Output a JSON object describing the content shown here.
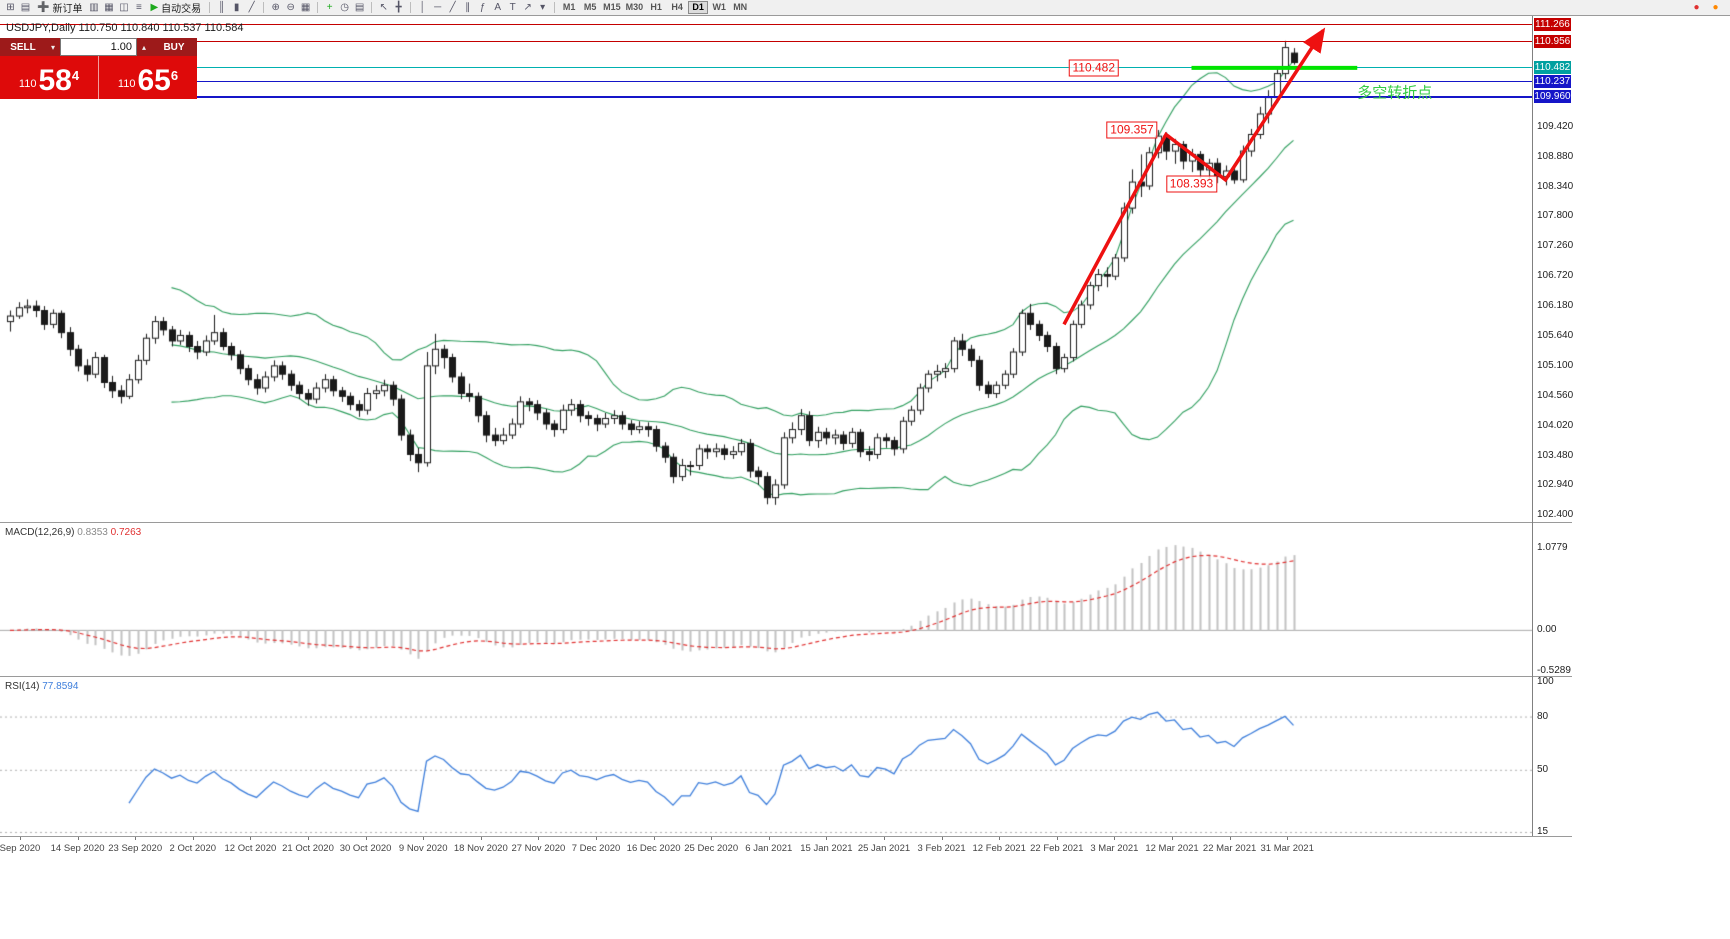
{
  "toolbar": {
    "new_order_label": "新订单",
    "autotrade_label": "自动交易",
    "active_timeframe": "D1",
    "timeframes": [
      "M1",
      "M5",
      "M15",
      "M30",
      "H1",
      "H4",
      "D1",
      "W1",
      "MN"
    ],
    "items": [
      {
        "name": "new-chart-icon",
        "glyph": "⊞"
      },
      {
        "name": "profiles-icon",
        "glyph": "▤"
      },
      {
        "name": "new-order-button",
        "glyph": "➕",
        "glyph_color": "#1daa1d",
        "label_key": "new_order_label",
        "button": true
      },
      {
        "name": "market-watch-icon",
        "glyph": "▥"
      },
      {
        "name": "data-window-icon",
        "glyph": "▦"
      },
      {
        "name": "navigator-icon",
        "glyph": "◫"
      },
      {
        "name": "terminal-icon",
        "glyph": "≡"
      },
      {
        "name": "autotrade-button",
        "glyph": "▶",
        "glyph_color": "#1daa1d",
        "label_key": "autotrade_label",
        "button": true
      },
      {
        "sep": true
      },
      {
        "name": "bar-chart-icon",
        "glyph": "║"
      },
      {
        "name": "candlestick-icon",
        "glyph": "▮"
      },
      {
        "name": "line-chart-icon",
        "glyph": "╱"
      },
      {
        "sep": true
      },
      {
        "name": "zoom-in-icon",
        "glyph": "⊕"
      },
      {
        "name": "zoom-out-icon",
        "glyph": "⊖"
      },
      {
        "name": "tile-windows-icon",
        "glyph": "▦"
      },
      {
        "sep": true
      },
      {
        "name": "indicators-icon",
        "glyph": "+",
        "glyph_color": "#1daa1d"
      },
      {
        "name": "periods-icon",
        "glyph": "◷"
      },
      {
        "name": "templates-icon",
        "glyph": "▤"
      },
      {
        "sep": true
      },
      {
        "name": "cursor-icon",
        "glyph": "↖"
      },
      {
        "name": "crosshair-icon",
        "glyph": "╋"
      },
      {
        "sep": true
      },
      {
        "name": "vertical-line-icon",
        "glyph": "│"
      },
      {
        "name": "horizontal-line-icon",
        "glyph": "─"
      },
      {
        "name": "trendline-icon",
        "glyph": "╱"
      },
      {
        "name": "channel-icon",
        "glyph": "∥"
      },
      {
        "name": "fibonacci-icon",
        "glyph": "ƒ"
      },
      {
        "name": "text-icon",
        "glyph": "A"
      },
      {
        "name": "text-label-icon",
        "glyph": "T"
      },
      {
        "name": "arrows-tool-icon",
        "glyph": "↗"
      },
      {
        "name": "dropdown-icon",
        "glyph": "▾"
      },
      {
        "sep": true
      }
    ],
    "right_icons": [
      {
        "name": "community-dot-icon",
        "glyph": "●",
        "glyph_color": "#e03131"
      },
      {
        "name": "corner-dot-icon",
        "glyph": "●",
        "glyph_color": "#ff8800"
      }
    ]
  },
  "trade_panel": {
    "sell_label": "SELL",
    "buy_label": "BUY",
    "volume": "1.00",
    "bid_small": "110",
    "bid_big": "58",
    "bid_sup": "4",
    "ask_small": "110",
    "ask_big": "65",
    "ask_sup": "6"
  },
  "chart_data": {
    "type": "candlestick",
    "symbol": "USDJPY",
    "timeframe": "Daily",
    "ohlc_title": "USDJPY,Daily  110.750 110.840 110.537 110.584",
    "ylim": [
      102.28,
      111.42
    ],
    "y_axis_labels": [
      "109.420",
      "108.880",
      "108.340",
      "107.800",
      "107.260",
      "106.720",
      "106.180",
      "105.640",
      "105.100",
      "104.560",
      "104.020",
      "103.480",
      "102.940",
      "102.400"
    ],
    "axis_chips": [
      {
        "text": "111.266",
        "price": 111.266,
        "bg": "#c40000"
      },
      {
        "text": "110.956",
        "price": 110.956,
        "bg": "#c40000"
      },
      {
        "text": "110.482",
        "price": 110.482,
        "bg": "#00a0a0"
      },
      {
        "text": "110.237",
        "price": 110.237,
        "bg": "#1515c8"
      },
      {
        "text": "109.960",
        "price": 109.96,
        "bg": "#1515c8"
      }
    ],
    "hlines": [
      {
        "price": 111.266,
        "color": "#c40000",
        "w": 1
      },
      {
        "price": 110.956,
        "color": "#c40000",
        "w": 1
      },
      {
        "price": 110.482,
        "color": "#00b0b0",
        "w": 1
      },
      {
        "price": 110.237,
        "color": "#1515c8",
        "w": 1
      },
      {
        "price": 109.96,
        "color": "#1515c8",
        "w": 2
      }
    ],
    "segment": {
      "price": 110.482,
      "from": 139,
      "to": 158.5,
      "color": "#00e400",
      "w": 4
    },
    "annotations": {
      "price_labels": [
        {
          "text": "110.482",
          "index": 127.5,
          "price": 110.482
        },
        {
          "text": "109.357",
          "index": 132,
          "price": 109.357
        },
        {
          "text": "108.393",
          "index": 139,
          "price": 108.393
        }
      ],
      "note": {
        "text": "多空转折点",
        "index": 158.5,
        "price": 110.05
      },
      "arrows": [
        {
          "points": [
            [
              124,
              105.85
            ],
            [
              136,
              109.28
            ],
            [
              143,
              108.46
            ],
            [
              154.5,
              111.16
            ]
          ]
        }
      ],
      "arrow_color": "#ee1111"
    },
    "x_labels": [
      "Sep 2020",
      "14 Sep 2020",
      "23 Sep 2020",
      "2 Oct 2020",
      "12 Oct 2020",
      "21 Oct 2020",
      "30 Oct 2020",
      "9 Nov 2020",
      "18 Nov 2020",
      "27 Nov 2020",
      "7 Dec 2020",
      "16 Dec 2020",
      "25 Dec 2020",
      "6 Jan 2021",
      "15 Jan 2021",
      "25 Jan 2021",
      "3 Feb 2021",
      "12 Feb 2021",
      "22 Feb 2021",
      "3 Mar 2021",
      "12 Mar 2021",
      "22 Mar 2021",
      "31 Mar 2021"
    ],
    "candles": [
      [
        105.9,
        106.1,
        105.72,
        106.0
      ],
      [
        106.0,
        106.25,
        105.95,
        106.15
      ],
      [
        106.15,
        106.3,
        106.05,
        106.18
      ],
      [
        106.18,
        106.28,
        105.98,
        106.1
      ],
      [
        106.1,
        106.18,
        105.75,
        105.85
      ],
      [
        105.85,
        106.12,
        105.78,
        106.05
      ],
      [
        106.05,
        106.1,
        105.6,
        105.7
      ],
      [
        105.7,
        105.8,
        105.28,
        105.4
      ],
      [
        105.4,
        105.48,
        105.0,
        105.1
      ],
      [
        105.1,
        105.22,
        104.82,
        104.95
      ],
      [
        104.95,
        105.35,
        104.88,
        105.25
      ],
      [
        105.25,
        105.3,
        104.7,
        104.8
      ],
      [
        104.8,
        104.92,
        104.52,
        104.65
      ],
      [
        104.65,
        104.75,
        104.42,
        104.55
      ],
      [
        104.55,
        104.95,
        104.5,
        104.85
      ],
      [
        104.85,
        105.3,
        104.78,
        105.2
      ],
      [
        105.2,
        105.68,
        105.12,
        105.6
      ],
      [
        105.6,
        106.0,
        105.5,
        105.9
      ],
      [
        105.9,
        105.98,
        105.65,
        105.75
      ],
      [
        105.75,
        105.82,
        105.45,
        105.55
      ],
      [
        105.55,
        105.75,
        105.48,
        105.65
      ],
      [
        105.65,
        105.72,
        105.35,
        105.45
      ],
      [
        105.45,
        105.55,
        105.22,
        105.35
      ],
      [
        105.35,
        105.65,
        105.28,
        105.55
      ],
      [
        105.55,
        106.02,
        105.48,
        105.7
      ],
      [
        105.7,
        105.78,
        105.38,
        105.45
      ],
      [
        105.45,
        105.52,
        105.2,
        105.3
      ],
      [
        105.3,
        105.38,
        104.95,
        105.05
      ],
      [
        105.05,
        105.12,
        104.75,
        104.85
      ],
      [
        104.85,
        104.95,
        104.58,
        104.7
      ],
      [
        104.7,
        105.0,
        104.62,
        104.9
      ],
      [
        104.9,
        105.2,
        104.82,
        105.1
      ],
      [
        105.1,
        105.18,
        104.85,
        104.95
      ],
      [
        104.95,
        105.02,
        104.65,
        104.75
      ],
      [
        104.75,
        104.82,
        104.5,
        104.6
      ],
      [
        104.6,
        104.68,
        104.38,
        104.5
      ],
      [
        104.5,
        104.8,
        104.42,
        104.7
      ],
      [
        104.7,
        104.95,
        104.62,
        104.85
      ],
      [
        104.85,
        104.92,
        104.55,
        104.65
      ],
      [
        104.65,
        104.72,
        104.45,
        104.55
      ],
      [
        104.55,
        104.62,
        104.3,
        104.4
      ],
      [
        104.4,
        104.48,
        104.18,
        104.3
      ],
      [
        104.3,
        104.7,
        104.22,
        104.6
      ],
      [
        104.6,
        104.75,
        104.5,
        104.65
      ],
      [
        104.65,
        104.85,
        104.55,
        104.75
      ],
      [
        104.75,
        104.82,
        104.38,
        104.5
      ],
      [
        104.5,
        104.58,
        103.75,
        103.85
      ],
      [
        103.85,
        103.95,
        103.38,
        103.5
      ],
      [
        103.5,
        103.62,
        103.18,
        103.35
      ],
      [
        103.35,
        105.35,
        103.28,
        105.1
      ],
      [
        105.1,
        105.68,
        104.95,
        105.4
      ],
      [
        105.4,
        105.48,
        105.05,
        105.25
      ],
      [
        105.25,
        105.32,
        104.8,
        104.9
      ],
      [
        104.9,
        104.98,
        104.5,
        104.6
      ],
      [
        104.6,
        104.78,
        104.45,
        104.55
      ],
      [
        104.55,
        104.62,
        104.08,
        104.2
      ],
      [
        104.2,
        104.28,
        103.72,
        103.85
      ],
      [
        103.85,
        103.98,
        103.65,
        103.75
      ],
      [
        103.75,
        103.98,
        103.68,
        103.85
      ],
      [
        103.85,
        104.15,
        103.78,
        104.05
      ],
      [
        104.05,
        104.55,
        103.98,
        104.45
      ],
      [
        104.45,
        104.52,
        104.28,
        104.4
      ],
      [
        104.4,
        104.48,
        104.12,
        104.25
      ],
      [
        104.25,
        104.32,
        103.95,
        104.05
      ],
      [
        104.05,
        104.12,
        103.82,
        103.95
      ],
      [
        103.95,
        104.4,
        103.88,
        104.3
      ],
      [
        104.3,
        104.5,
        104.2,
        104.4
      ],
      [
        104.4,
        104.48,
        104.08,
        104.2
      ],
      [
        104.2,
        104.28,
        104.02,
        104.15
      ],
      [
        104.15,
        104.22,
        103.92,
        104.05
      ],
      [
        104.05,
        104.25,
        103.98,
        104.15
      ],
      [
        104.15,
        104.3,
        104.05,
        104.2
      ],
      [
        104.2,
        104.28,
        103.95,
        104.05
      ],
      [
        104.05,
        104.12,
        103.85,
        103.95
      ],
      [
        103.95,
        104.1,
        103.88,
        104.0
      ],
      [
        104.0,
        104.08,
        103.82,
        103.95
      ],
      [
        103.95,
        104.02,
        103.55,
        103.65
      ],
      [
        103.65,
        103.72,
        103.35,
        103.45
      ],
      [
        103.45,
        103.52,
        102.98,
        103.1
      ],
      [
        103.1,
        103.42,
        103.02,
        103.3
      ],
      [
        103.3,
        103.38,
        103.12,
        103.3
      ],
      [
        103.3,
        103.68,
        103.22,
        103.6
      ],
      [
        103.6,
        103.68,
        103.42,
        103.55
      ],
      [
        103.55,
        103.7,
        103.45,
        103.6
      ],
      [
        103.6,
        103.68,
        103.4,
        103.5
      ],
      [
        103.5,
        103.65,
        103.42,
        103.55
      ],
      [
        103.55,
        103.78,
        103.48,
        103.7
      ],
      [
        103.7,
        103.78,
        103.08,
        103.2
      ],
      [
        103.2,
        103.28,
        102.95,
        103.1
      ],
      [
        103.1,
        103.18,
        102.6,
        102.72
      ],
      [
        102.72,
        103.05,
        102.59,
        102.95
      ],
      [
        102.95,
        103.9,
        102.88,
        103.8
      ],
      [
        103.8,
        104.08,
        103.7,
        103.95
      ],
      [
        103.95,
        104.32,
        103.85,
        104.2
      ],
      [
        104.2,
        104.28,
        103.65,
        103.75
      ],
      [
        103.75,
        104.0,
        103.62,
        103.9
      ],
      [
        103.9,
        103.98,
        103.68,
        103.8
      ],
      [
        103.8,
        103.95,
        103.68,
        103.85
      ],
      [
        103.85,
        103.92,
        103.58,
        103.7
      ],
      [
        103.7,
        103.98,
        103.62,
        103.9
      ],
      [
        103.9,
        103.96,
        103.45,
        103.55
      ],
      [
        103.55,
        103.65,
        103.38,
        103.5
      ],
      [
        103.5,
        103.88,
        103.42,
        103.8
      ],
      [
        103.8,
        103.88,
        103.62,
        103.75
      ],
      [
        103.75,
        103.82,
        103.48,
        103.6
      ],
      [
        103.6,
        104.18,
        103.52,
        104.1
      ],
      [
        104.1,
        104.38,
        104.02,
        104.3
      ],
      [
        104.3,
        104.78,
        104.22,
        104.7
      ],
      [
        104.7,
        105.02,
        104.62,
        104.95
      ],
      [
        104.95,
        105.12,
        104.82,
        105.0
      ],
      [
        105.0,
        105.15,
        104.88,
        105.05
      ],
      [
        105.05,
        105.62,
        104.98,
        105.55
      ],
      [
        105.55,
        105.68,
        105.28,
        105.4
      ],
      [
        105.4,
        105.48,
        105.08,
        105.2
      ],
      [
        105.2,
        105.28,
        104.65,
        104.75
      ],
      [
        104.75,
        104.82,
        104.52,
        104.6
      ],
      [
        104.6,
        104.82,
        104.52,
        104.75
      ],
      [
        104.75,
        105.02,
        104.68,
        104.95
      ],
      [
        104.95,
        105.42,
        104.88,
        105.35
      ],
      [
        105.35,
        106.12,
        105.28,
        106.05
      ],
      [
        106.05,
        106.22,
        105.75,
        105.85
      ],
      [
        105.85,
        105.92,
        105.55,
        105.65
      ],
      [
        105.65,
        105.72,
        105.35,
        105.45
      ],
      [
        105.45,
        105.52,
        104.95,
        105.05
      ],
      [
        105.05,
        105.32,
        104.98,
        105.25
      ],
      [
        105.25,
        105.92,
        105.18,
        105.85
      ],
      [
        105.85,
        106.28,
        105.78,
        106.2
      ],
      [
        106.2,
        106.62,
        106.12,
        106.55
      ],
      [
        106.55,
        106.85,
        106.45,
        106.75
      ],
      [
        106.75,
        106.88,
        106.52,
        106.72
      ],
      [
        106.72,
        107.12,
        106.65,
        107.05
      ],
      [
        107.05,
        108.05,
        106.98,
        107.95
      ],
      [
        107.95,
        108.65,
        107.85,
        108.42
      ],
      [
        108.42,
        108.92,
        108.15,
        108.35
      ],
      [
        108.35,
        109.05,
        108.28,
        108.95
      ],
      [
        108.95,
        109.36,
        108.85,
        109.25
      ],
      [
        109.25,
        109.32,
        108.82,
        108.98
      ],
      [
        108.98,
        109.2,
        108.75,
        109.1
      ],
      [
        109.1,
        109.16,
        108.65,
        108.8
      ],
      [
        108.8,
        109.02,
        108.6,
        108.92
      ],
      [
        108.92,
        108.98,
        108.5,
        108.64
      ],
      [
        108.64,
        108.84,
        108.45,
        108.76
      ],
      [
        108.76,
        108.85,
        108.4,
        108.52
      ],
      [
        108.52,
        108.72,
        108.36,
        108.62
      ],
      [
        108.62,
        108.74,
        108.39,
        108.46
      ],
      [
        108.46,
        109.08,
        108.41,
        108.98
      ],
      [
        108.98,
        109.38,
        108.88,
        109.28
      ],
      [
        109.28,
        109.78,
        109.2,
        109.65
      ],
      [
        109.65,
        110.08,
        109.48,
        109.95
      ],
      [
        109.95,
        110.48,
        109.85,
        110.38
      ],
      [
        110.38,
        110.97,
        110.28,
        110.85
      ],
      [
        110.75,
        110.84,
        110.54,
        110.58
      ]
    ],
    "indicators": {
      "bollinger": {
        "period": 20,
        "deviation": 2,
        "color": "#2f9e5e"
      },
      "macd": {
        "label": "MACD(12,26,9)",
        "value_main": "0.8353",
        "value_signal": "0.7263",
        "axis_labels": [
          "1.0779",
          "0.00",
          "-0.5289"
        ],
        "ylim": [
          -0.6,
          1.4
        ],
        "hist_color": "#c3c3c3",
        "signal_color": "#e03131"
      },
      "rsi": {
        "label": "RSI(14)",
        "value": "77.8594",
        "axis_labels": [
          "100",
          "80",
          "50",
          "15"
        ],
        "levels": [
          80,
          50,
          15
        ],
        "ylim": [
          13,
          102
        ],
        "color": "#3d7edb"
      }
    }
  }
}
